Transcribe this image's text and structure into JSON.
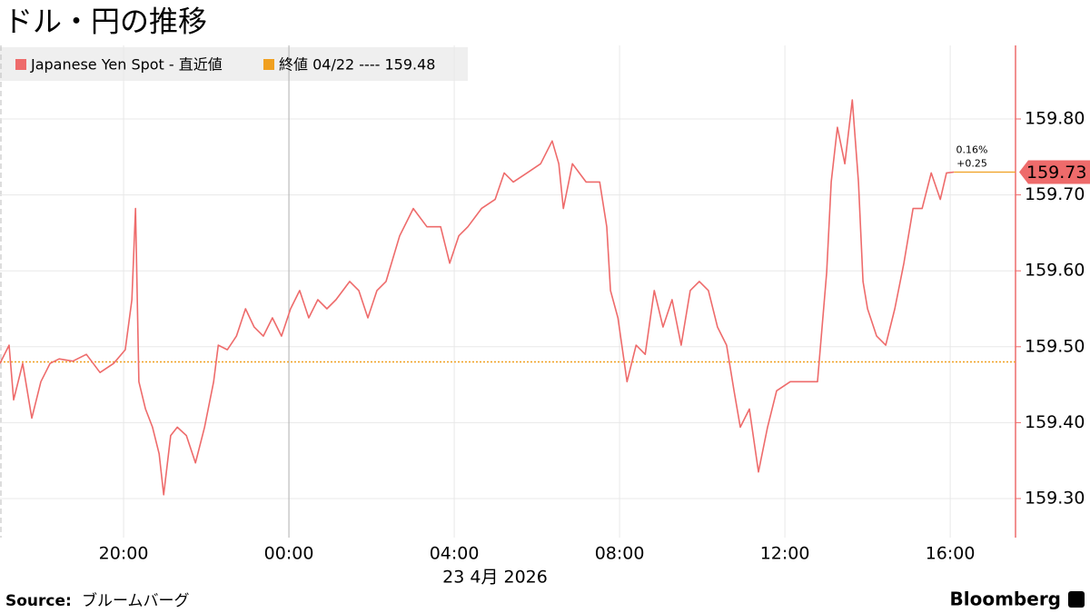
{
  "chart_data": {
    "type": "line",
    "title": "ドル・円の推移",
    "xlabel": "23 4月 2026",
    "source_label": "Source:",
    "source": "ブルームバーグ",
    "brand": "Bloomberg",
    "last_value_label": "159.73",
    "annotations": [
      "0.16%",
      "+0.25"
    ],
    "reference": {
      "name": "終値 04/22 ---- 159.48",
      "value": 159.48,
      "color": "#f0a020"
    },
    "xlim": [
      -6.99,
      17.58
    ],
    "ylim": [
      159.25,
      159.9
    ],
    "xticks": [
      {
        "value": -4,
        "label": "20:00"
      },
      {
        "value": 0,
        "label": "00:00"
      },
      {
        "value": 4,
        "label": "04:00"
      },
      {
        "value": 8,
        "label": "08:00"
      },
      {
        "value": 12,
        "label": "12:00"
      },
      {
        "value": 16,
        "label": "16:00"
      }
    ],
    "yticks": [
      {
        "value": 159.3,
        "label": "159.30"
      },
      {
        "value": 159.4,
        "label": "159.40"
      },
      {
        "value": 159.5,
        "label": "159.50"
      },
      {
        "value": 159.6,
        "label": "159.60"
      },
      {
        "value": 159.7,
        "label": "159.70"
      },
      {
        "value": 159.8,
        "label": "159.80"
      }
    ],
    "grid": true,
    "x": [
      -6.99,
      -6.77,
      -6.66,
      -6.44,
      -6.22,
      -6.0,
      -5.78,
      -5.56,
      -5.23,
      -4.9,
      -4.57,
      -4.24,
      -3.96,
      -3.8,
      -3.71,
      -3.63,
      -3.47,
      -3.3,
      -3.14,
      -3.03,
      -2.86,
      -2.7,
      -2.48,
      -2.26,
      -2.04,
      -1.82,
      -1.71,
      -1.49,
      -1.27,
      -1.05,
      -0.84,
      -0.62,
      -0.4,
      -0.18,
      0.04,
      0.26,
      0.48,
      0.7,
      0.92,
      1.14,
      1.47,
      1.69,
      1.91,
      2.13,
      2.35,
      2.68,
      3.01,
      3.34,
      3.67,
      3.89,
      4.11,
      4.33,
      4.66,
      4.99,
      5.21,
      5.43,
      5.76,
      6.09,
      6.37,
      6.53,
      6.64,
      6.86,
      7.19,
      7.52,
      7.69,
      7.78,
      7.96,
      8.18,
      8.4,
      8.62,
      8.84,
      9.05,
      9.27,
      9.49,
      9.71,
      9.93,
      10.15,
      10.37,
      10.59,
      10.77,
      10.92,
      11.14,
      11.36,
      11.58,
      11.8,
      12.13,
      12.46,
      12.79,
      13.01,
      13.12,
      13.27,
      13.45,
      13.63,
      13.78,
      13.89,
      14.0,
      14.22,
      14.44,
      14.66,
      14.88,
      15.1,
      15.32,
      15.54,
      15.76,
      15.91,
      16.09
    ],
    "series": [
      {
        "name": "Japanese Yen Spot - 直近値",
        "color": "#ee6b6b",
        "values": [
          159.478,
          159.502,
          159.43,
          159.478,
          159.406,
          159.454,
          159.478,
          159.484,
          159.481,
          159.49,
          159.466,
          159.478,
          159.496,
          159.562,
          159.682,
          159.454,
          159.418,
          159.394,
          159.359,
          159.305,
          159.383,
          159.394,
          159.383,
          159.347,
          159.394,
          159.454,
          159.502,
          159.496,
          159.514,
          159.55,
          159.526,
          159.514,
          159.538,
          159.514,
          159.55,
          159.574,
          159.538,
          159.562,
          159.55,
          159.562,
          159.586,
          159.574,
          159.538,
          159.574,
          159.586,
          159.646,
          159.682,
          159.658,
          159.658,
          159.61,
          159.646,
          159.658,
          159.682,
          159.694,
          159.729,
          159.717,
          159.729,
          159.741,
          159.771,
          159.741,
          159.682,
          159.741,
          159.717,
          159.717,
          159.658,
          159.574,
          159.538,
          159.454,
          159.502,
          159.49,
          159.574,
          159.526,
          159.562,
          159.502,
          159.574,
          159.586,
          159.574,
          159.526,
          159.502,
          159.442,
          159.394,
          159.418,
          159.335,
          159.394,
          159.442,
          159.454,
          159.454,
          159.454,
          159.598,
          159.717,
          159.789,
          159.741,
          159.825,
          159.717,
          159.586,
          159.55,
          159.514,
          159.502,
          159.55,
          159.61,
          159.682,
          159.682,
          159.729,
          159.694,
          159.729,
          159.73
        ]
      }
    ]
  }
}
